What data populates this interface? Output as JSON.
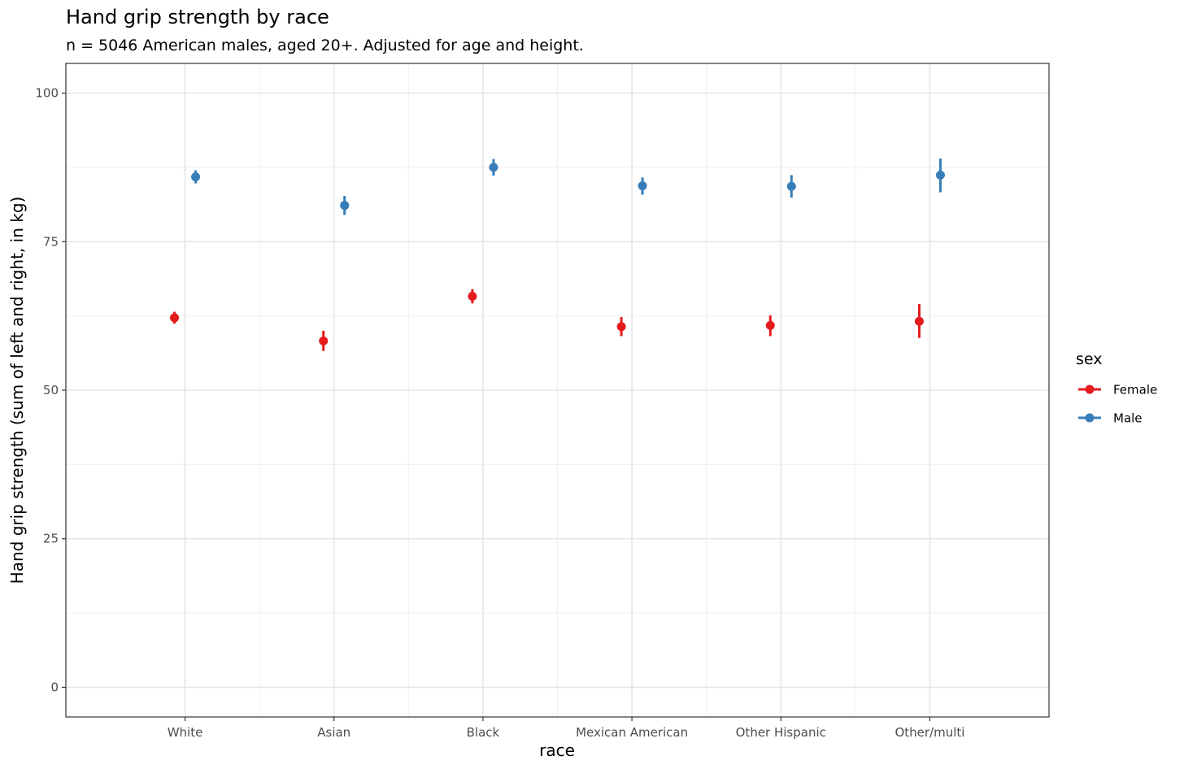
{
  "chart_data": {
    "type": "scatter",
    "title": "Hand grip strength by race",
    "subtitle": "n = 5046 American males, aged 20+. Adjusted for age and height.",
    "xlabel": "race",
    "ylabel": "Hand grip strength (sum of left and right, in kg)",
    "categories": [
      "White",
      "Asian",
      "Black",
      "Mexican American",
      "Other Hispanic",
      "Other/multi"
    ],
    "ylim": [
      -5,
      105
    ],
    "yticks": [
      0,
      25,
      50,
      75,
      100
    ],
    "grid": true,
    "legend": {
      "title": "sex",
      "placement": "right"
    },
    "series": [
      {
        "name": "Female",
        "color": "#e41a1c",
        "values": [
          62.2,
          58.3,
          65.8,
          60.7,
          60.9,
          61.6
        ],
        "lower": [
          61.2,
          56.6,
          64.6,
          59.1,
          59.1,
          58.8
        ],
        "upper": [
          63.2,
          60.0,
          67.0,
          62.3,
          62.6,
          64.5
        ]
      },
      {
        "name": "Male",
        "color": "#377eb8",
        "values": [
          85.9,
          81.1,
          87.5,
          84.4,
          84.3,
          86.2
        ],
        "lower": [
          84.8,
          79.5,
          86.1,
          82.9,
          82.4,
          83.3
        ],
        "upper": [
          87.0,
          82.7,
          88.9,
          85.8,
          86.2,
          89.0
        ]
      }
    ]
  }
}
